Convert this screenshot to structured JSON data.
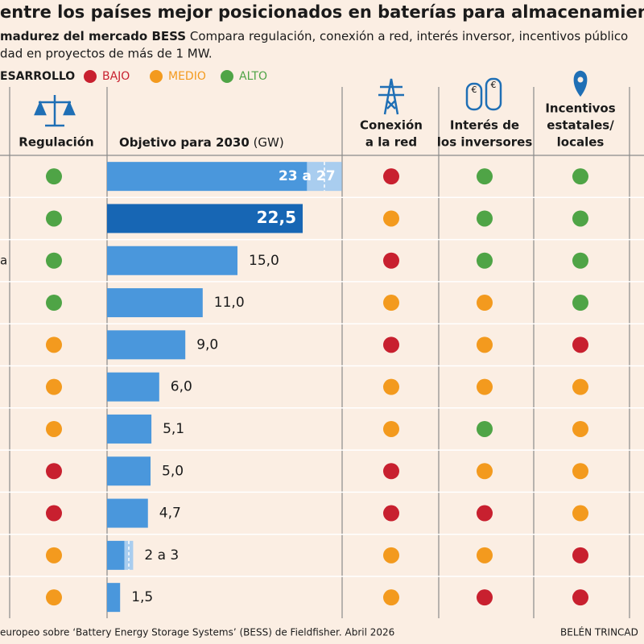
{
  "header": {
    "title": "entre los países mejor posicionados en baterías para almacenamiento de",
    "subtitle_bold": "madurez del mercado BESS",
    "subtitle": "Compara regulación, conexión a red, interés inversor, incentivos público",
    "subtitle_line2": "dad en proyectos de más de 1 MW."
  },
  "legend": {
    "title": "ESARROLLO",
    "levels": [
      {
        "label": "BAJO",
        "color": "#c8202f"
      },
      {
        "label": "MEDIO",
        "color": "#f39a1e"
      },
      {
        "label": "ALTO",
        "color": "#4fa446"
      }
    ]
  },
  "columns": {
    "regulation": "Regulación",
    "target": "Objetivo para 2030",
    "target_unit": "(GW)",
    "grid": [
      "Conexión",
      "a la red"
    ],
    "investors": [
      "Interés de",
      "los inversores"
    ],
    "incentives": [
      "Incentivos",
      "estatales/",
      "locales"
    ]
  },
  "rows": [
    {
      "regulation": 2,
      "target": [
        23,
        27
      ],
      "target_label": "23 a 27",
      "grid": 0,
      "investors": 2,
      "incentives": 2
    },
    {
      "regulation": 2,
      "target": 22.5,
      "target_label": "22,5",
      "highlight": true,
      "grid": 1,
      "investors": 2,
      "incentives": 2
    },
    {
      "label": "a",
      "regulation": 2,
      "target": 15.0,
      "target_label": "15,0",
      "grid": 0,
      "investors": 2,
      "incentives": 2
    },
    {
      "regulation": 2,
      "target": 11.0,
      "target_label": "11,0",
      "grid": 1,
      "investors": 1,
      "incentives": 2
    },
    {
      "regulation": 1,
      "target": 9.0,
      "target_label": "9,0",
      "grid": 0,
      "investors": 1,
      "incentives": 0
    },
    {
      "regulation": 1,
      "target": 6.0,
      "target_label": "6,0",
      "grid": 1,
      "investors": 1,
      "incentives": 1
    },
    {
      "regulation": 1,
      "target": 5.1,
      "target_label": "5,1",
      "grid": 1,
      "investors": 2,
      "incentives": 1
    },
    {
      "regulation": 0,
      "target": 5.0,
      "target_label": "5,0",
      "grid": 0,
      "investors": 1,
      "incentives": 1
    },
    {
      "regulation": 0,
      "target": 4.7,
      "target_label": "4,7",
      "grid": 0,
      "investors": 0,
      "incentives": 1
    },
    {
      "regulation": 1,
      "target": [
        2,
        3
      ],
      "target_label": "2 a 3",
      "grid": 1,
      "investors": 1,
      "incentives": 0
    },
    {
      "regulation": 1,
      "target": 1.5,
      "target_label": "1,5",
      "grid": 1,
      "investors": 0,
      "incentives": 0
    }
  ],
  "footer": {
    "source": "europeo sobre ‘Battery Energy Storage Systems’ (BESS) de Fieldfisher. Abril 2026",
    "author": "BELÉN TRINCAD"
  }
}
